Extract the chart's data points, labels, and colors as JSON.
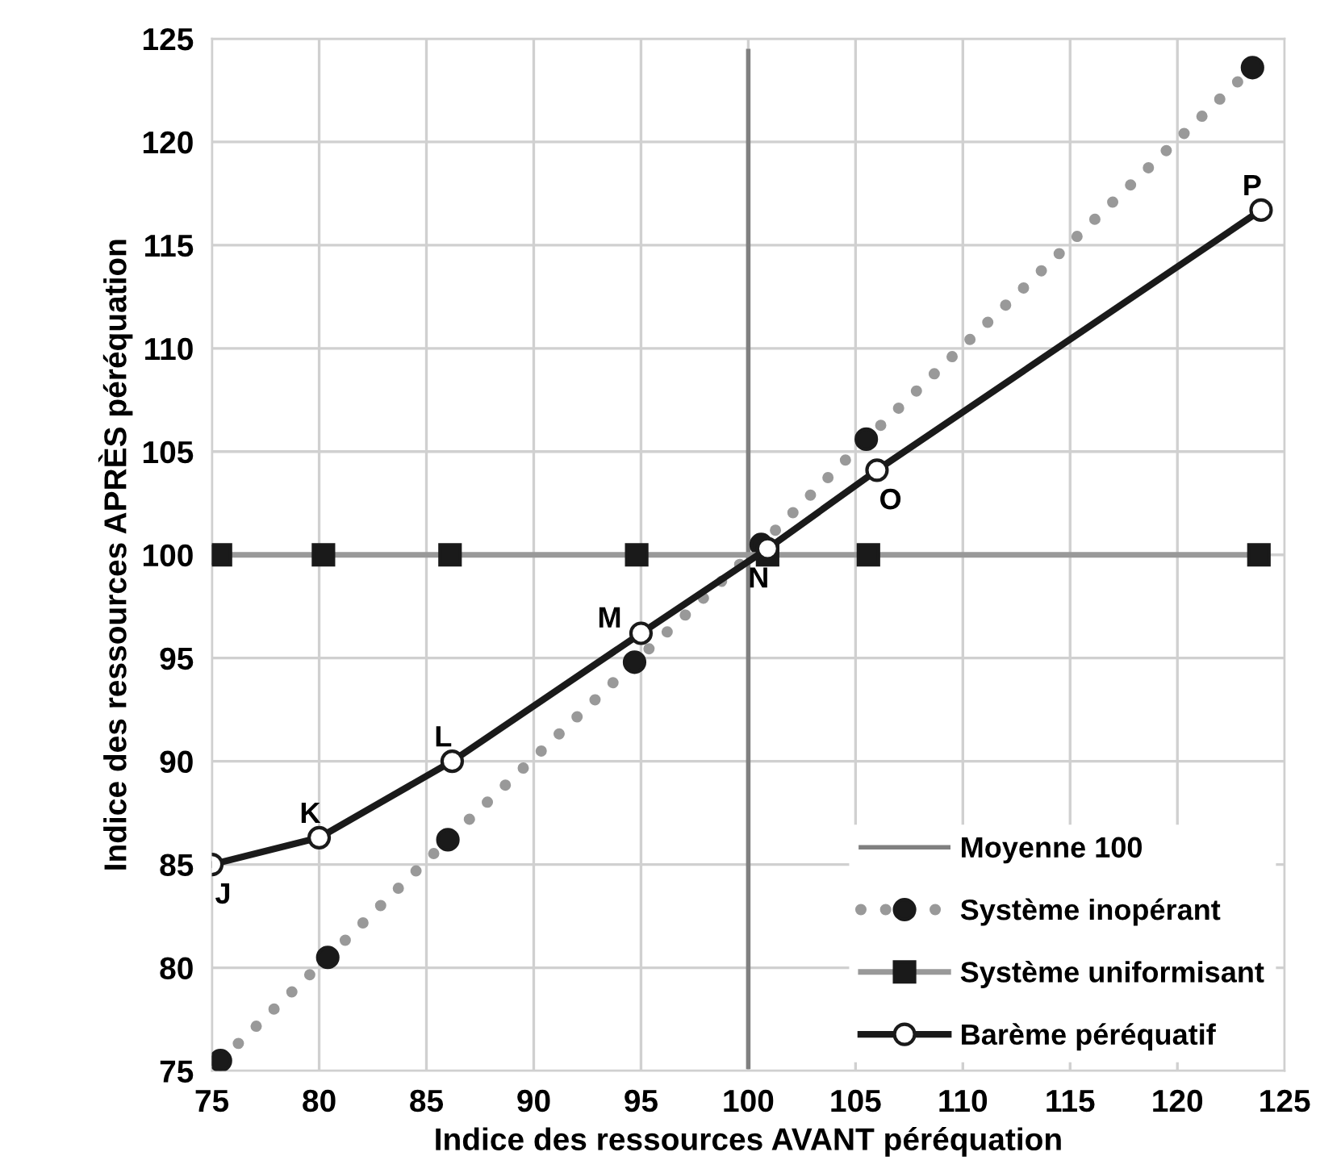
{
  "chart_data": {
    "type": "line",
    "xlabel": "Indice des ressources AVANT péréquation",
    "ylabel": "Indice des ressources APRÈS péréquation",
    "xlim": [
      75,
      125
    ],
    "xticks": [
      75,
      80,
      85,
      90,
      95,
      100,
      105,
      110,
      115,
      120,
      125
    ],
    "ylim": [
      75,
      125
    ],
    "yticks": [
      75,
      80,
      85,
      90,
      95,
      100,
      105,
      110,
      115,
      120,
      125
    ],
    "grid": true,
    "legend": "bottom right",
    "series": [
      {
        "name": "Moyenne 100",
        "color": "#808080",
        "marker": "none",
        "line_style": "solid",
        "x": [
          100,
          100
        ],
        "values": [
          75.2,
          124.4
        ]
      },
      {
        "name": "Système inopérant",
        "color": "#999999",
        "marker": "circle",
        "line_style": "dotted",
        "x": [
          75.4,
          80.4,
          86.0,
          94.7,
          100.6,
          105.5,
          123.5
        ],
        "values": [
          75.5,
          80.5,
          86.2,
          94.8,
          100.5,
          105.6,
          123.6
        ]
      },
      {
        "name": "Système uniformisant",
        "color": "#999999",
        "marker": "square",
        "line_style": "solid",
        "x": [
          75.4,
          80.2,
          86.1,
          94.8,
          100.9,
          105.6,
          123.8
        ],
        "values": [
          100,
          100,
          100,
          100,
          100,
          100,
          100
        ]
      },
      {
        "name": "Barème péréquatif",
        "color": "#1a1a1a",
        "marker": "circle",
        "line_style": "solid",
        "x": [
          75,
          80,
          86.2,
          95,
          100.9,
          106,
          123.9
        ],
        "values": [
          85,
          86.3,
          90,
          96.2,
          100.3,
          104.1,
          116.7
        ]
      }
    ],
    "annotations": [
      {
        "text": "J",
        "x": 75,
        "y": 85
      },
      {
        "text": "K",
        "x": 80,
        "y": 86.3
      },
      {
        "text": "L",
        "x": 86.2,
        "y": 90
      },
      {
        "text": "M",
        "x": 95,
        "y": 96.2
      },
      {
        "text": "N",
        "x": 100.9,
        "y": 100.3
      },
      {
        "text": "O",
        "x": 106,
        "y": 104.1
      },
      {
        "text": "P",
        "x": 123.9,
        "y": 116.7
      }
    ]
  }
}
